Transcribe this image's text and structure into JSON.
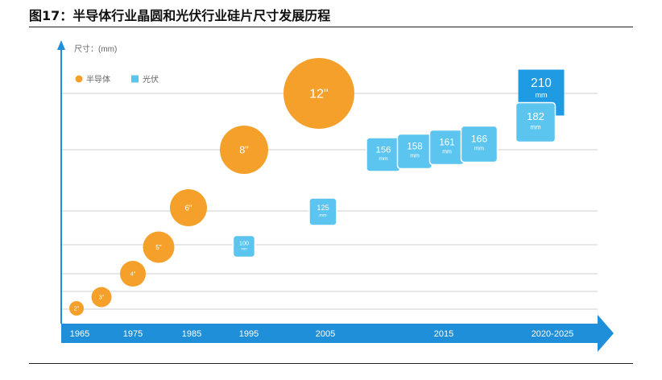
{
  "title": "图17：半导体行业晶圆和光伏行业硅片尺寸发展历程",
  "chart_data": {
    "type": "scatter",
    "ylabel": "尺寸：(mm)",
    "legend": [
      {
        "name": "半导体",
        "color": "#F5A02A",
        "shape": "circle"
      },
      {
        "name": "光伏",
        "color": "#5BC4EF",
        "shape": "square"
      }
    ],
    "legend_position": "top-left",
    "x_ticks": [
      "1965",
      "1975",
      "1985",
      "1995",
      "2005",
      "2015",
      "2020-2025"
    ],
    "grid": true,
    "axis_color": "#1E8FD8",
    "series": [
      {
        "name": "半导体",
        "color": "#F5A02A",
        "points": [
          {
            "label": "2\"",
            "year": 1965,
            "size_inch": 2
          },
          {
            "label": "3\"",
            "year": 1970,
            "size_inch": 3
          },
          {
            "label": "4\"",
            "year": 1975,
            "size_inch": 4
          },
          {
            "label": "5\"",
            "year": 1980,
            "size_inch": 5
          },
          {
            "label": "6\"",
            "year": 1985,
            "size_inch": 6
          },
          {
            "label": "8\"",
            "year": 1991,
            "size_inch": 8
          },
          {
            "label": "12\"",
            "year": 2001,
            "size_inch": 12
          }
        ]
      },
      {
        "name": "光伏",
        "color": "#5BC4EF",
        "points": [
          {
            "value": "100",
            "unit": "mm",
            "year": 1995,
            "size_mm": 100
          },
          {
            "value": "125",
            "unit": "mm",
            "year": 2005,
            "size_mm": 125
          },
          {
            "value": "156",
            "unit": "mm",
            "year": 2010,
            "size_mm": 156
          },
          {
            "value": "158",
            "unit": "mm",
            "year": 2013,
            "size_mm": 158
          },
          {
            "value": "161",
            "unit": "mm",
            "year": 2015,
            "size_mm": 161
          },
          {
            "value": "166",
            "unit": "mm",
            "year": 2018,
            "size_mm": 166
          },
          {
            "value": "182",
            "unit": "mm",
            "year": 2020,
            "size_mm": 182
          },
          {
            "value": "210",
            "unit": "mm",
            "year": 2021,
            "size_mm": 210
          }
        ]
      }
    ]
  }
}
